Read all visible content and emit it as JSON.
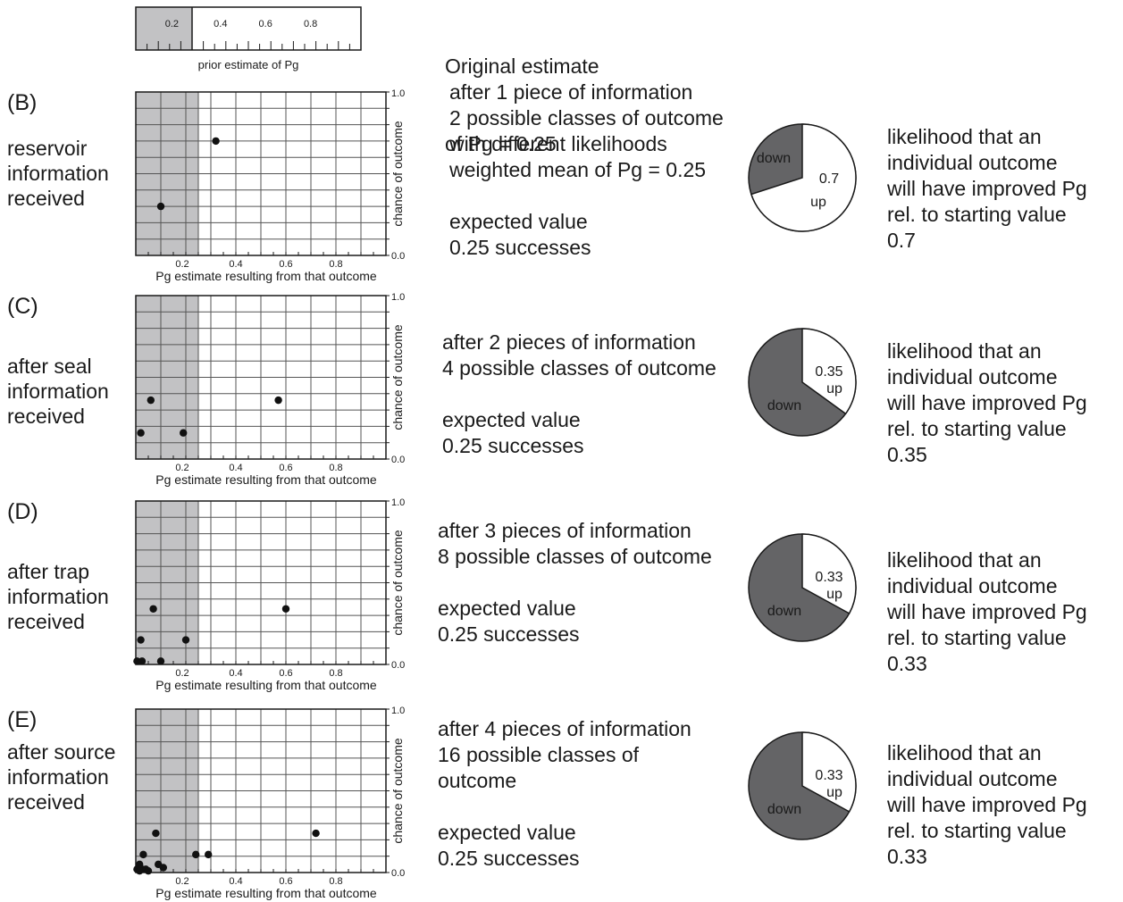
{
  "prior": {
    "ticks": [
      "0.2",
      "0.4",
      "0.6",
      "0.8"
    ],
    "xlabel": "prior estimate of Pg",
    "note": [
      "Original estimate",
      "of Pg = 0.25"
    ]
  },
  "panels": [
    {
      "letter": "(B)",
      "label": [
        "reservoir",
        "information",
        "received"
      ],
      "desc": [
        "after 1 piece of information",
        "2 possible classes of outcome",
        "with different likelihoods",
        "weighted mean of Pg = 0.25",
        "",
        "expected value",
        "0.25 successes"
      ],
      "pie": {
        "up": 0.7,
        "up_label": "up",
        "down_label": "down",
        "value_label": "0.7"
      },
      "right": [
        "likelihood that an",
        "individual outcome",
        "will have improved Pg",
        "rel. to starting value",
        "0.7"
      ]
    },
    {
      "letter": "(C)",
      "label": [
        "after seal",
        "information",
        "received"
      ],
      "desc": [
        "after 2 pieces of information",
        "4 possible classes of outcome",
        "",
        "expected value",
        "0.25 successes"
      ],
      "pie": {
        "up": 0.35,
        "up_label": "up",
        "down_label": "down",
        "value_label": "0.35"
      },
      "right": [
        "likelihood that an",
        "individual outcome",
        "will have improved Pg",
        "rel. to starting value",
        "0.35"
      ]
    },
    {
      "letter": "(D)",
      "label": [
        "after trap",
        "information",
        "received"
      ],
      "desc": [
        "after 3 pieces of information",
        "8 possible classes of outcome",
        "",
        "expected value",
        "0.25 successes"
      ],
      "pie": {
        "up": 0.33,
        "up_label": "up",
        "down_label": "down",
        "value_label": "0.33"
      },
      "right": [
        "likelihood that an",
        "individual outcome",
        "will have improved Pg",
        "rel. to starting value",
        "0.33"
      ]
    },
    {
      "letter": "(E)",
      "label": [
        "after source",
        "information",
        "received"
      ],
      "desc": [
        "after 4 pieces of information",
        "16 possible classes of",
        "outcome",
        "",
        "expected value",
        "0.25 successes"
      ],
      "pie": {
        "up": 0.33,
        "up_label": "up",
        "down_label": "down",
        "value_label": "0.33"
      },
      "right": [
        "likelihood that an",
        "individual outcome",
        "will have improved Pg",
        "rel. to starting value",
        "0.33"
      ]
    }
  ],
  "chart_data": [
    {
      "type": "scatter",
      "title": "(B)",
      "xlabel": "Pg estimate resulting from that outcome",
      "ylabel": "chance of outcome",
      "xlim": [
        0,
        1
      ],
      "ylim": [
        0,
        1
      ],
      "x_ticks": [
        "0.2",
        "0.4",
        "0.6",
        "0.8"
      ],
      "y_ticks": [
        "1.0",
        "0.0"
      ],
      "prior_shade_upto": 0.25,
      "grid": true,
      "points": [
        [
          0.32,
          0.7
        ],
        [
          0.1,
          0.3
        ]
      ]
    },
    {
      "type": "scatter",
      "title": "(C)",
      "xlabel": "Pg estimate resulting from that outcome",
      "ylabel": "chance of outcome",
      "xlim": [
        0,
        1
      ],
      "ylim": [
        0,
        1
      ],
      "x_ticks": [
        "0.2",
        "0.4",
        "0.6",
        "0.8"
      ],
      "y_ticks": [
        "1.0",
        "0.0"
      ],
      "prior_shade_upto": 0.25,
      "grid": true,
      "points": [
        [
          0.06,
          0.36
        ],
        [
          0.57,
          0.36
        ],
        [
          0.02,
          0.16
        ],
        [
          0.19,
          0.16
        ]
      ]
    },
    {
      "type": "scatter",
      "title": "(D)",
      "xlabel": "Pg estimate resulting from that outcome",
      "ylabel": "chance of outcome",
      "xlim": [
        0,
        1
      ],
      "ylim": [
        0,
        1
      ],
      "x_ticks": [
        "0.2",
        "0.4",
        "0.6",
        "0.8"
      ],
      "y_ticks": [
        "1.0",
        "0.0"
      ],
      "prior_shade_upto": 0.25,
      "grid": true,
      "points": [
        [
          0.07,
          0.34
        ],
        [
          0.6,
          0.34
        ],
        [
          0.02,
          0.15
        ],
        [
          0.2,
          0.15
        ],
        [
          0.005,
          0.02
        ],
        [
          0.025,
          0.02
        ],
        [
          0.1,
          0.02
        ]
      ]
    },
    {
      "type": "scatter",
      "title": "(E)",
      "xlabel": "Pg estimate resulting from that outcome",
      "ylabel": "chance of outcome",
      "xlim": [
        0,
        1
      ],
      "ylim": [
        0,
        1
      ],
      "x_ticks": [
        "0.2",
        "0.4",
        "0.6",
        "0.8"
      ],
      "y_ticks": [
        "1.0",
        "0.0"
      ],
      "prior_shade_upto": 0.25,
      "grid": true,
      "points": [
        [
          0.08,
          0.24
        ],
        [
          0.72,
          0.24
        ],
        [
          0.03,
          0.11
        ],
        [
          0.24,
          0.11
        ],
        [
          0.29,
          0.11
        ],
        [
          0.09,
          0.05
        ],
        [
          0.11,
          0.03
        ],
        [
          0.015,
          0.05
        ],
        [
          0.005,
          0.02
        ],
        [
          0.025,
          0.02
        ],
        [
          0.04,
          0.02
        ],
        [
          0.015,
          0.01
        ],
        [
          0.05,
          0.01
        ]
      ]
    }
  ]
}
